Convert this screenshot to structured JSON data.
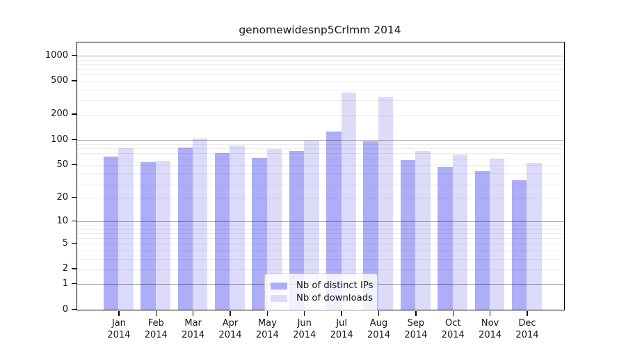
{
  "title": "genomewidesnp5Crlmm 2014",
  "colors": {
    "ips_bar": "#adadf8",
    "downloads_bar": "#dcdcfa",
    "spine": "#000000",
    "grid_major": "#a8a8a8",
    "grid_minor": "#ededed",
    "text": "#151515"
  },
  "legend": {
    "items": [
      {
        "label": "Nb of distinct IPs",
        "color_key": "ips_bar"
      },
      {
        "label": "Nb of downloads",
        "color_key": "downloads_bar"
      }
    ]
  },
  "chart_data": {
    "type": "bar",
    "title": "genomewidesnp5Crlmm 2014",
    "categories": [
      "Jan 2014",
      "Feb 2014",
      "Mar 2014",
      "Apr 2014",
      "May 2014",
      "Jun 2014",
      "Jul 2014",
      "Aug 2014",
      "Sep 2014",
      "Oct 2014",
      "Nov 2014",
      "Dec 2014"
    ],
    "series": [
      {
        "name": "Nb of distinct IPs",
        "values": [
          63,
          54,
          81,
          70,
          61,
          74,
          127,
          96,
          58,
          48,
          42,
          33
        ]
      },
      {
        "name": "Nb of downloads",
        "values": [
          80,
          57,
          104,
          86,
          79,
          98,
          370,
          330,
          74,
          67,
          60,
          53
        ]
      }
    ],
    "xlabel": "",
    "ylabel": "",
    "yscale": "log1p",
    "yticks": [
      0,
      1,
      2,
      5,
      10,
      20,
      50,
      100,
      200,
      500,
      1000
    ],
    "ylim": [
      0,
      1450
    ],
    "grid": true,
    "legend_position": "inside-bottom-center"
  }
}
